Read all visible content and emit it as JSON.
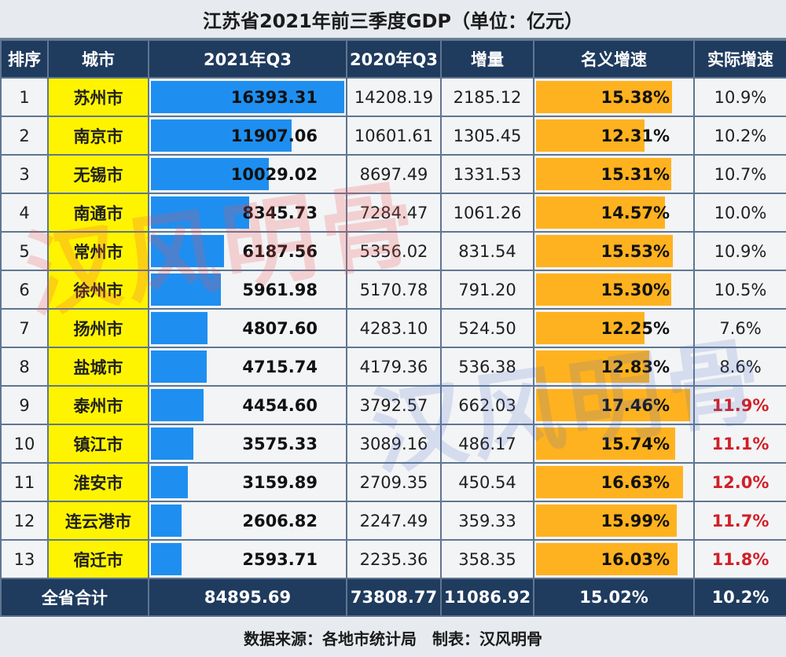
{
  "title": "江苏省2021年前三季度GDP（单位：亿元）",
  "headers": {
    "rank": "排序",
    "city": "城市",
    "q3_2021": "2021年Q3",
    "q3_2020": "2020年Q3",
    "increase": "增量",
    "nominal": "名义增速",
    "real": "实际增速"
  },
  "colors": {
    "header_bg": "#1f3b5e",
    "city_bg": "#fff400",
    "gdp_bar": "#1e8ff0",
    "growth_bar": "#ffb21f",
    "highlight_text": "#d11f27"
  },
  "rows": [
    {
      "rank": "1",
      "city": "苏州市",
      "q3_2021": "16393.31",
      "q3_2020": "14208.19",
      "increase": "2185.12",
      "nominal": "15.38%",
      "real": "10.9%",
      "real_highlight": false
    },
    {
      "rank": "2",
      "city": "南京市",
      "q3_2021": "11907.06",
      "q3_2020": "10601.61",
      "increase": "1305.45",
      "nominal": "12.31%",
      "real": "10.2%",
      "real_highlight": false
    },
    {
      "rank": "3",
      "city": "无锡市",
      "q3_2021": "10029.02",
      "q3_2020": "8697.49",
      "increase": "1331.53",
      "nominal": "15.31%",
      "real": "10.7%",
      "real_highlight": false
    },
    {
      "rank": "4",
      "city": "南通市",
      "q3_2021": "8345.73",
      "q3_2020": "7284.47",
      "increase": "1061.26",
      "nominal": "14.57%",
      "real": "10.0%",
      "real_highlight": false
    },
    {
      "rank": "5",
      "city": "常州市",
      "q3_2021": "6187.56",
      "q3_2020": "5356.02",
      "increase": "831.54",
      "nominal": "15.53%",
      "real": "10.9%",
      "real_highlight": false
    },
    {
      "rank": "6",
      "city": "徐州市",
      "q3_2021": "5961.98",
      "q3_2020": "5170.78",
      "increase": "791.20",
      "nominal": "15.30%",
      "real": "10.5%",
      "real_highlight": false
    },
    {
      "rank": "7",
      "city": "扬州市",
      "q3_2021": "4807.60",
      "q3_2020": "4283.10",
      "increase": "524.50",
      "nominal": "12.25%",
      "real": "7.6%",
      "real_highlight": false
    },
    {
      "rank": "8",
      "city": "盐城市",
      "q3_2021": "4715.74",
      "q3_2020": "4179.36",
      "increase": "536.38",
      "nominal": "12.83%",
      "real": "8.6%",
      "real_highlight": false
    },
    {
      "rank": "9",
      "city": "泰州市",
      "q3_2021": "4454.60",
      "q3_2020": "3792.57",
      "increase": "662.03",
      "nominal": "17.46%",
      "real": "11.9%",
      "real_highlight": true
    },
    {
      "rank": "10",
      "city": "镇江市",
      "q3_2021": "3575.33",
      "q3_2020": "3089.16",
      "increase": "486.17",
      "nominal": "15.74%",
      "real": "11.1%",
      "real_highlight": true
    },
    {
      "rank": "11",
      "city": "淮安市",
      "q3_2021": "3159.89",
      "q3_2020": "2709.35",
      "increase": "450.54",
      "nominal": "16.63%",
      "real": "12.0%",
      "real_highlight": true
    },
    {
      "rank": "12",
      "city": "连云港市",
      "q3_2021": "2606.82",
      "q3_2020": "2247.49",
      "increase": "359.33",
      "nominal": "15.99%",
      "real": "11.7%",
      "real_highlight": true
    },
    {
      "rank": "13",
      "city": "宿迁市",
      "q3_2021": "2593.71",
      "q3_2020": "2235.36",
      "increase": "358.35",
      "nominal": "16.03%",
      "real": "11.8%",
      "real_highlight": true
    }
  ],
  "total": {
    "label": "全省合计",
    "q3_2021": "84895.69",
    "q3_2020": "73808.77",
    "increase": "11086.92",
    "nominal": "15.02%",
    "real": "10.2%"
  },
  "footer": "数据来源：各地市统计局　制表：汉风明骨",
  "watermark": "汉风明骨",
  "chart_data": {
    "type": "table",
    "title": "江苏省2021年前三季度GDP（单位：亿元）",
    "columns": [
      "排序",
      "城市",
      "2021年Q3",
      "2020年Q3",
      "增量",
      "名义增速",
      "实际增速"
    ],
    "categories": [
      "苏州市",
      "南京市",
      "无锡市",
      "南通市",
      "常州市",
      "徐州市",
      "扬州市",
      "盐城市",
      "泰州市",
      "镇江市",
      "淮安市",
      "连云港市",
      "宿迁市"
    ],
    "series": [
      {
        "name": "2021年Q3",
        "values": [
          16393.31,
          11907.06,
          10029.02,
          8345.73,
          6187.56,
          5961.98,
          4807.6,
          4715.74,
          4454.6,
          3575.33,
          3159.89,
          2606.82,
          2593.71
        ]
      },
      {
        "name": "2020年Q3",
        "values": [
          14208.19,
          10601.61,
          8697.49,
          7284.47,
          5356.02,
          5170.78,
          4283.1,
          4179.36,
          3792.57,
          3089.16,
          2709.35,
          2247.49,
          2235.36
        ]
      },
      {
        "name": "增量",
        "values": [
          2185.12,
          1305.45,
          1331.53,
          1061.26,
          831.54,
          791.2,
          524.5,
          536.38,
          662.03,
          486.17,
          450.54,
          359.33,
          358.35
        ]
      },
      {
        "name": "名义增速",
        "values": [
          15.38,
          12.31,
          15.31,
          14.57,
          15.53,
          15.3,
          12.25,
          12.83,
          17.46,
          15.74,
          16.63,
          15.99,
          16.03
        ]
      },
      {
        "name": "实际增速",
        "values": [
          10.9,
          10.2,
          10.7,
          10.0,
          10.9,
          10.5,
          7.6,
          8.6,
          11.9,
          11.1,
          12.0,
          11.7,
          11.8
        ]
      }
    ],
    "gdp_bar_max": 16393.31,
    "growth_bar_max": 17.46
  }
}
